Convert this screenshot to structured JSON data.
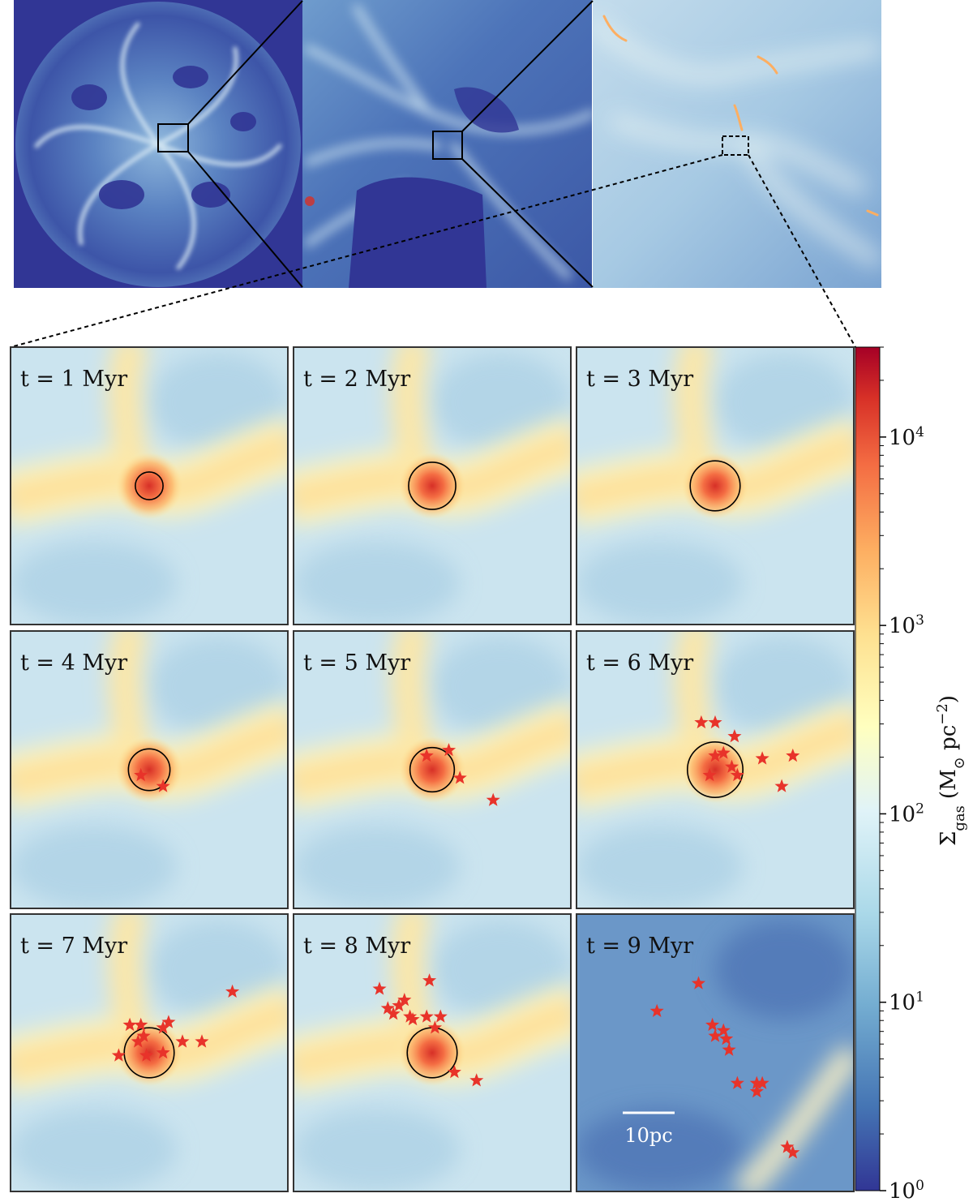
{
  "figure": {
    "overview_panels": [
      "galaxy-disk",
      "zoom-region-1",
      "zoom-region-2"
    ]
  },
  "chart_data": {
    "type": "heatmap",
    "quantity": "gas surface density",
    "colorbar": {
      "label_symbol": "Σ",
      "label_subscript": "gas",
      "label_units": "(M",
      "label_units_sub": "⊙",
      "label_units_tail": " pc",
      "label_units_exp": "−2",
      "label_close": ")",
      "scale": "log",
      "range": [
        1,
        30000
      ],
      "ticks": [
        {
          "base": "10",
          "exp": "0",
          "value": 1
        },
        {
          "base": "10",
          "exp": "1",
          "value": 10
        },
        {
          "base": "10",
          "exp": "2",
          "value": 100
        },
        {
          "base": "10",
          "exp": "3",
          "value": 1000
        },
        {
          "base": "10",
          "exp": "4",
          "value": 10000
        }
      ],
      "colormap": "RdYlBu_r"
    },
    "scale_bar": {
      "label": "10pc",
      "length_pc": 10
    },
    "snapshots": [
      {
        "label": "t = 1 Myr",
        "t_myr": 1,
        "circle_radius": 0.05,
        "stars": []
      },
      {
        "label": "t = 2 Myr",
        "t_myr": 2,
        "circle_radius": 0.085,
        "stars": []
      },
      {
        "label": "t = 3 Myr",
        "t_myr": 3,
        "circle_radius": 0.09,
        "stars": []
      },
      {
        "label": "t = 4 Myr",
        "t_myr": 4,
        "circle_radius": 0.075,
        "stars": [
          [
            0.47,
            0.52
          ],
          [
            0.55,
            0.56
          ]
        ]
      },
      {
        "label": "t = 5 Myr",
        "t_myr": 5,
        "circle_radius": 0.08,
        "stars": [
          [
            0.48,
            0.45
          ],
          [
            0.56,
            0.43
          ],
          [
            0.6,
            0.53
          ],
          [
            0.72,
            0.61
          ]
        ]
      },
      {
        "label": "t = 6 Myr",
        "t_myr": 6,
        "circle_radius": 0.1,
        "stars": [
          [
            0.45,
            0.33
          ],
          [
            0.5,
            0.33
          ],
          [
            0.57,
            0.38
          ],
          [
            0.53,
            0.44
          ],
          [
            0.5,
            0.45
          ],
          [
            0.56,
            0.49
          ],
          [
            0.58,
            0.52
          ],
          [
            0.48,
            0.52
          ],
          [
            0.67,
            0.46
          ],
          [
            0.78,
            0.45
          ],
          [
            0.74,
            0.56
          ]
        ]
      },
      {
        "label": "t = 7 Myr",
        "t_myr": 7,
        "circle_radius": 0.09,
        "stars": [
          [
            0.8,
            0.28
          ],
          [
            0.43,
            0.4
          ],
          [
            0.47,
            0.4
          ],
          [
            0.55,
            0.41
          ],
          [
            0.57,
            0.39
          ],
          [
            0.48,
            0.44
          ],
          [
            0.46,
            0.46
          ],
          [
            0.62,
            0.46
          ],
          [
            0.69,
            0.46
          ],
          [
            0.39,
            0.51
          ],
          [
            0.55,
            0.5
          ],
          [
            0.49,
            0.51
          ]
        ]
      },
      {
        "label": "t = 8 Myr",
        "t_myr": 8,
        "circle_radius": 0.09,
        "stars": [
          [
            0.49,
            0.24
          ],
          [
            0.31,
            0.27
          ],
          [
            0.4,
            0.31
          ],
          [
            0.38,
            0.33
          ],
          [
            0.34,
            0.34
          ],
          [
            0.36,
            0.36
          ],
          [
            0.42,
            0.37
          ],
          [
            0.43,
            0.38
          ],
          [
            0.48,
            0.37
          ],
          [
            0.53,
            0.37
          ],
          [
            0.51,
            0.41
          ],
          [
            0.58,
            0.57
          ],
          [
            0.66,
            0.6
          ]
        ]
      },
      {
        "label": "t = 9 Myr",
        "t_myr": 9,
        "circle_radius": 0,
        "stars": [
          [
            0.44,
            0.25
          ],
          [
            0.29,
            0.35
          ],
          [
            0.49,
            0.4
          ],
          [
            0.53,
            0.42
          ],
          [
            0.5,
            0.44
          ],
          [
            0.54,
            0.45
          ],
          [
            0.55,
            0.49
          ],
          [
            0.58,
            0.61
          ],
          [
            0.65,
            0.61
          ],
          [
            0.67,
            0.61
          ],
          [
            0.65,
            0.64
          ],
          [
            0.76,
            0.84
          ],
          [
            0.78,
            0.86
          ]
        ]
      }
    ]
  }
}
